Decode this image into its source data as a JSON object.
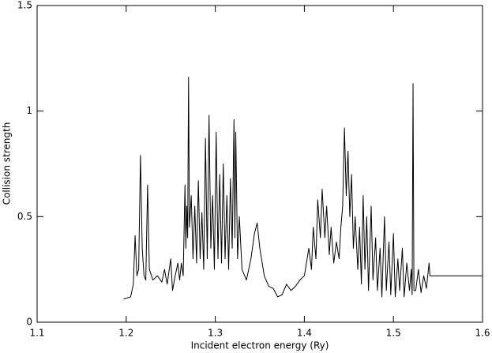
{
  "chart_data": {
    "type": "line",
    "x_label": "Incident electron energy (Ry)",
    "y_label": "Collision strength",
    "xlim": [
      1.1,
      1.6
    ],
    "xticks": [
      1.1,
      1.2,
      1.3,
      1.4,
      1.5,
      1.6
    ],
    "ylim": [
      0,
      1.5
    ],
    "yticks": [
      0,
      0.5,
      1,
      1.5
    ],
    "grid": false,
    "color": "#000000",
    "x": [
      1.197,
      1.205,
      1.208,
      1.21,
      1.212,
      1.214,
      1.216,
      1.218,
      1.22,
      1.222,
      1.224,
      1.226,
      1.23,
      1.235,
      1.24,
      1.243,
      1.246,
      1.25,
      1.252,
      1.255,
      1.258,
      1.26,
      1.262,
      1.264,
      1.266,
      1.267,
      1.268,
      1.269,
      1.27,
      1.271,
      1.273,
      1.275,
      1.277,
      1.279,
      1.281,
      1.283,
      1.285,
      1.287,
      1.289,
      1.291,
      1.293,
      1.295,
      1.297,
      1.299,
      1.301,
      1.303,
      1.305,
      1.307,
      1.309,
      1.311,
      1.313,
      1.315,
      1.317,
      1.319,
      1.321,
      1.322,
      1.323,
      1.325,
      1.327,
      1.33,
      1.335,
      1.34,
      1.344,
      1.347,
      1.35,
      1.355,
      1.36,
      1.365,
      1.37,
      1.375,
      1.38,
      1.385,
      1.39,
      1.395,
      1.4,
      1.405,
      1.408,
      1.41,
      1.413,
      1.415,
      1.418,
      1.42,
      1.423,
      1.425,
      1.428,
      1.43,
      1.433,
      1.436,
      1.439,
      1.441,
      1.443,
      1.445,
      1.447,
      1.449,
      1.451,
      1.453,
      1.455,
      1.457,
      1.46,
      1.462,
      1.464,
      1.466,
      1.468,
      1.47,
      1.472,
      1.475,
      1.477,
      1.48,
      1.482,
      1.485,
      1.487,
      1.49,
      1.492,
      1.495,
      1.497,
      1.5,
      1.502,
      1.505,
      1.507,
      1.51,
      1.512,
      1.515,
      1.518,
      1.52,
      1.521,
      1.522,
      1.523,
      1.525,
      1.528,
      1.531,
      1.534,
      1.537,
      1.54,
      1.541,
      1.6
    ],
    "y": [
      0.11,
      0.12,
      0.18,
      0.41,
      0.22,
      0.25,
      0.79,
      0.35,
      0.22,
      0.2,
      0.65,
      0.25,
      0.2,
      0.22,
      0.19,
      0.25,
      0.18,
      0.3,
      0.15,
      0.22,
      0.28,
      0.2,
      0.28,
      0.22,
      0.65,
      0.35,
      0.55,
      0.4,
      1.16,
      0.45,
      0.6,
      0.3,
      0.55,
      0.28,
      0.67,
      0.3,
      0.52,
      0.25,
      0.87,
      0.3,
      0.98,
      0.35,
      0.6,
      0.25,
      0.9,
      0.3,
      0.7,
      0.28,
      0.75,
      0.3,
      0.6,
      0.25,
      0.68,
      0.35,
      0.96,
      0.4,
      0.9,
      0.3,
      0.5,
      0.25,
      0.2,
      0.3,
      0.42,
      0.47,
      0.35,
      0.22,
      0.17,
      0.16,
      0.12,
      0.13,
      0.18,
      0.15,
      0.17,
      0.2,
      0.22,
      0.35,
      0.25,
      0.45,
      0.3,
      0.58,
      0.4,
      0.63,
      0.4,
      0.55,
      0.32,
      0.45,
      0.28,
      0.38,
      0.3,
      0.45,
      0.55,
      0.92,
      0.6,
      0.81,
      0.5,
      0.7,
      0.35,
      0.5,
      0.25,
      0.45,
      0.18,
      0.6,
      0.25,
      0.5,
      0.15,
      0.55,
      0.2,
      0.4,
      0.15,
      0.35,
      0.12,
      0.5,
      0.15,
      0.38,
      0.13,
      0.42,
      0.12,
      0.3,
      0.15,
      0.35,
      0.12,
      0.28,
      0.15,
      0.25,
      0.13,
      1.13,
      0.15,
      0.15,
      0.25,
      0.14,
      0.22,
      0.16,
      0.28,
      0.22,
      0.22
    ]
  }
}
